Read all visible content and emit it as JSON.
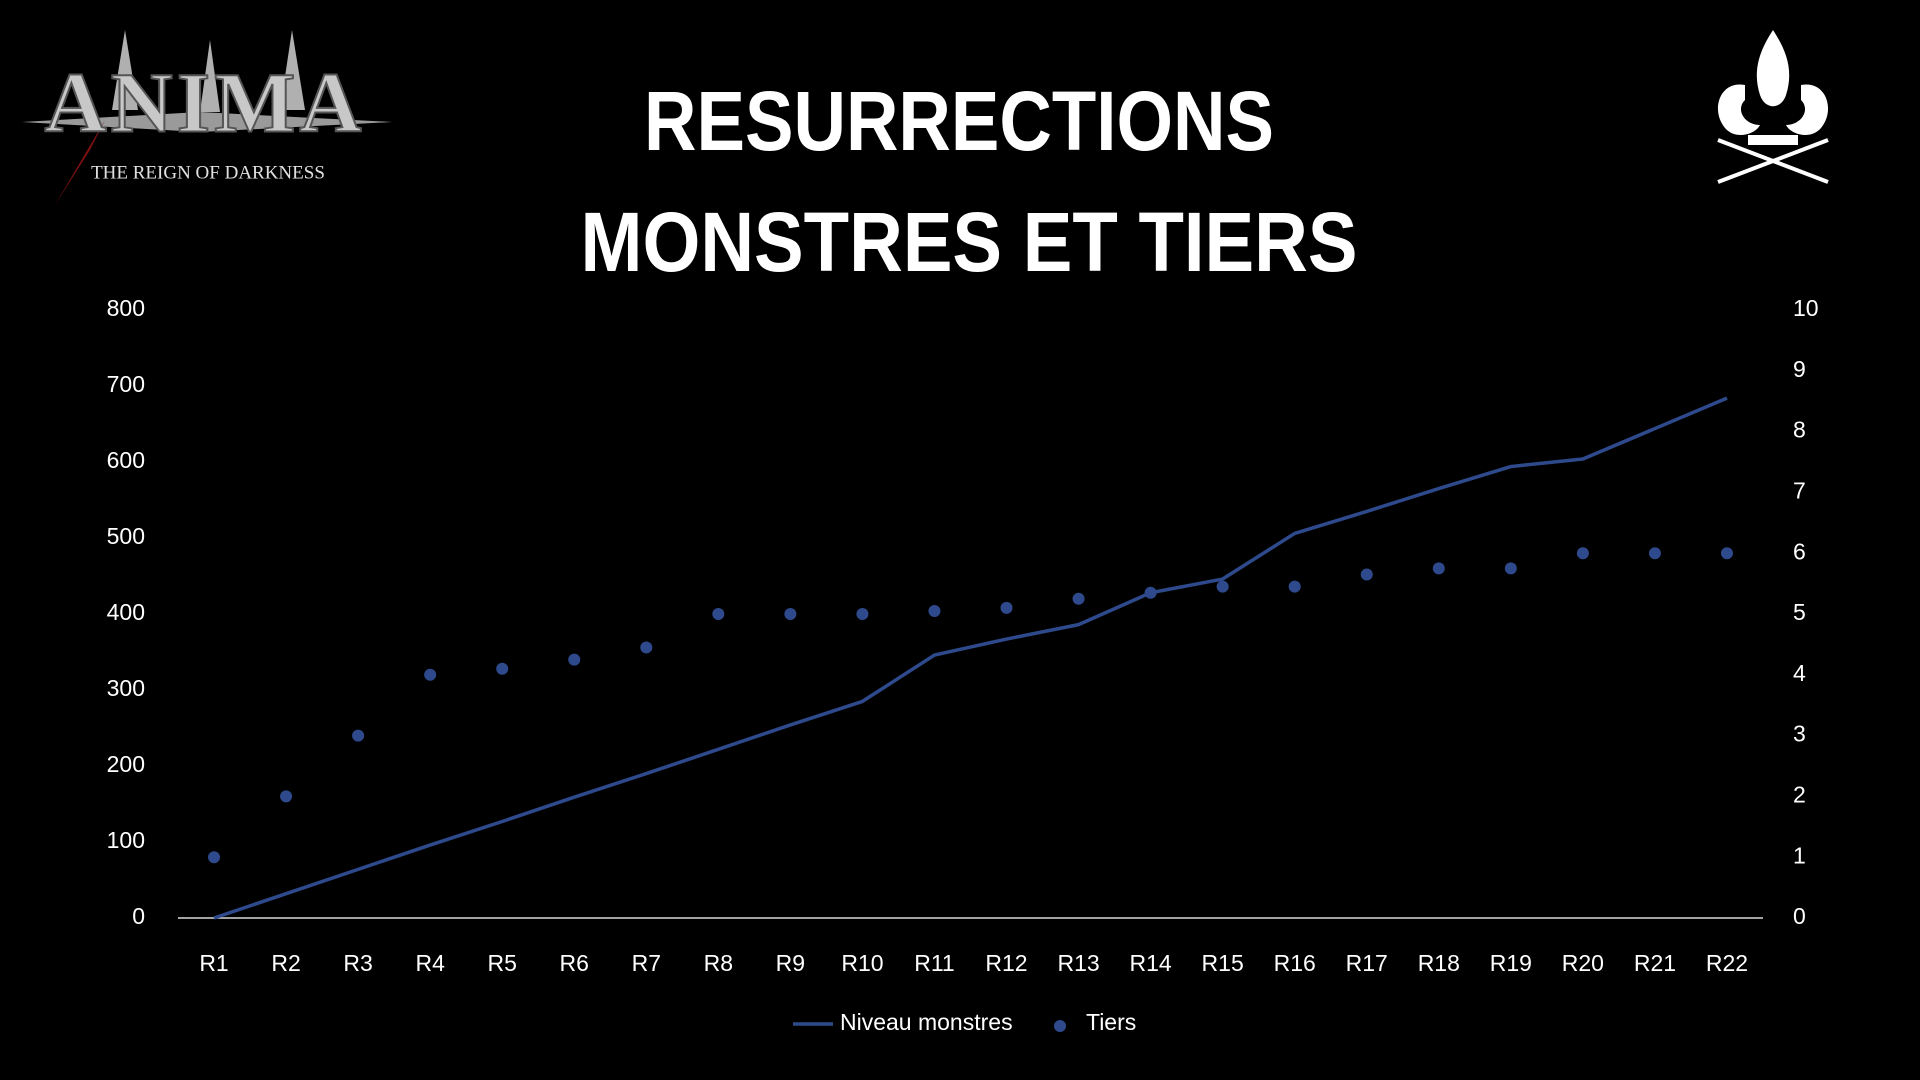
{
  "logos": {
    "game_title": "ANIMA",
    "game_subtitle": "THE REIGN OF DARKNESS"
  },
  "chart_data": {
    "type": "combo",
    "title": [
      "RESURRECTIONS",
      "MONSTRES ET TIERS"
    ],
    "categories": [
      "R1",
      "R2",
      "R3",
      "R4",
      "R5",
      "R6",
      "R7",
      "R8",
      "R9",
      "R10",
      "R11",
      "R12",
      "R13",
      "R14",
      "R15",
      "R16",
      "R17",
      "R18",
      "R19",
      "R20",
      "R21",
      "R22"
    ],
    "series": [
      {
        "name": "Niveau monstres",
        "type": "line",
        "color": "#2e4a8c",
        "values": [
          0,
          32,
          64,
          96,
          127,
          159,
          190,
          222,
          254,
          285,
          346,
          367,
          386,
          428,
          446,
          506,
          535,
          565,
          594,
          604,
          644,
          684
        ]
      },
      {
        "name": "Tiers",
        "type": "scatter",
        "axis": "y2",
        "color": "#2e4a8c",
        "values": [
          1,
          2,
          3,
          4,
          4.1,
          4.25,
          4.45,
          5,
          5,
          5,
          5.05,
          5.1,
          5.25,
          5.35,
          5.45,
          5.45,
          5.65,
          5.75,
          5.75,
          6,
          6,
          6
        ]
      }
    ],
    "ylim": [
      0,
      800
    ],
    "yticks": [
      0,
      100,
      200,
      300,
      400,
      500,
      600,
      700,
      800
    ],
    "y2lim": [
      0,
      10
    ],
    "y2ticks": [
      0,
      1,
      2,
      3,
      4,
      5,
      6,
      7,
      8,
      9,
      10
    ],
    "grid": false,
    "legend": "bottom"
  }
}
